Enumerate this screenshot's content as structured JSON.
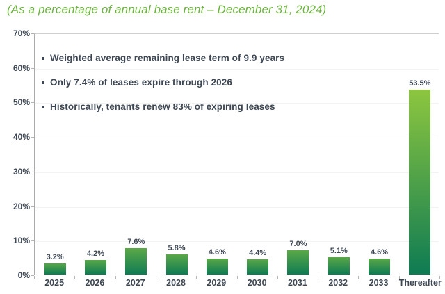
{
  "title": "(As a percentage of annual base rent – December 31, 2024)",
  "callouts": [
    "Weighted average remaining lease term of 9.9 years",
    "Only 7.4% of leases expire through 2026",
    "Historically, tenants renew 83% of expiring leases"
  ],
  "chart_data": {
    "type": "bar",
    "title": "(As a percentage of annual base rent – December 31, 2024)",
    "categories": [
      "2025",
      "2026",
      "2027",
      "2028",
      "2029",
      "2030",
      "2031",
      "2032",
      "2033",
      "Thereafter"
    ],
    "values": [
      3.2,
      4.2,
      7.6,
      5.8,
      4.6,
      4.4,
      7.0,
      5.1,
      4.6,
      53.5
    ],
    "value_labels": [
      "3.2%",
      "4.2%",
      "7.6%",
      "5.8%",
      "4.6%",
      "4.4%",
      "7.0%",
      "5.1%",
      "4.6%",
      "53.5%"
    ],
    "xlabel": "",
    "ylabel": "",
    "ylim": [
      0,
      70
    ],
    "yticks": [
      "0%",
      "10%",
      "20%",
      "30%",
      "40%",
      "50%",
      "60%",
      "70%"
    ],
    "grid": true,
    "legend": false,
    "colors": {
      "bar_gradient_top": "#8dc63f",
      "bar_gradient_bottom": "#0e7b53",
      "title_green": "#6cb33f",
      "text_dark": "#3d4753",
      "axis_gray": "#ababab",
      "gridline": "#f3f3f3"
    }
  }
}
